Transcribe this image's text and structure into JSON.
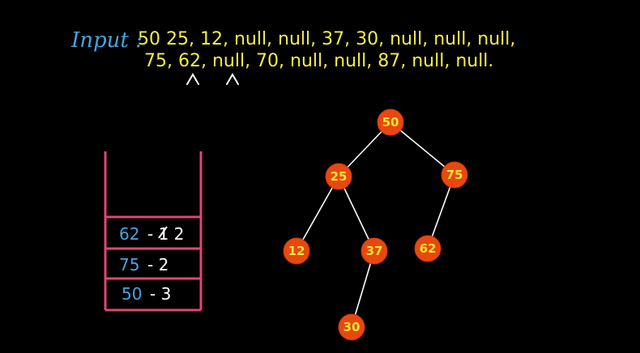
{
  "input": {
    "label": "Input :",
    "line1": "50 25, 12, null, null, 37, 30, null, null, null,",
    "line2": "75, 62, null, 70, null, null, 87, null, null."
  },
  "stack": {
    "frames": [
      {
        "node": "62",
        "rest": "- 1 2",
        "struck_digit": "1"
      },
      {
        "node": "75",
        "rest": "- 2"
      },
      {
        "node": "50",
        "rest": "- 3"
      }
    ]
  },
  "tree": {
    "nodes": [
      "50",
      "25",
      "75",
      "12",
      "37",
      "62",
      "30"
    ],
    "edges": [
      [
        "50",
        "25"
      ],
      [
        "50",
        "75"
      ],
      [
        "25",
        "12"
      ],
      [
        "25",
        "37"
      ],
      [
        "75",
        "62"
      ],
      [
        "37",
        "30"
      ]
    ]
  },
  "colors": {
    "background": "#000000",
    "input_label": "#4aa3e0",
    "input_text": "#f4ee4a",
    "stack_border": "#e0457a",
    "node_fill": "#e8480f",
    "node_text": "#f6e63a"
  }
}
